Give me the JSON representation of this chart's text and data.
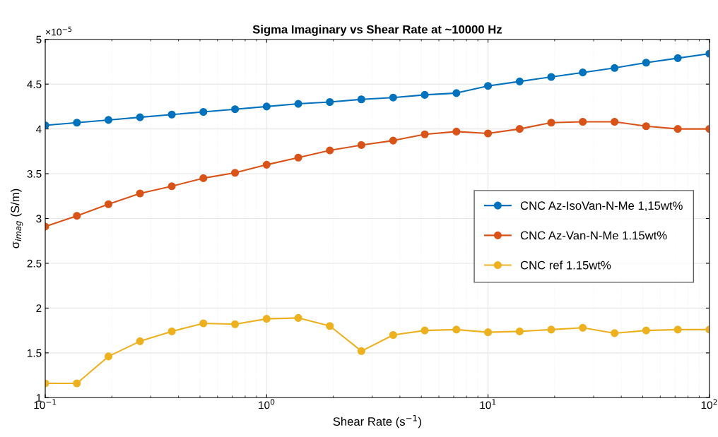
{
  "chart_data": {
    "type": "line",
    "title": "Sigma Imaginary vs Shear Rate at ~10000 Hz",
    "xlabel": "Shear Rate (s$^{−1}$)",
    "ylabel": "σ$_{imag}$ (S/m)",
    "x": [
      0.1,
      0.139,
      0.193,
      0.268,
      0.373,
      0.518,
      0.72,
      1.0,
      1.39,
      1.93,
      2.68,
      3.73,
      5.18,
      7.2,
      10,
      13.9,
      19.3,
      26.8,
      37.3,
      51.8,
      72,
      100
    ],
    "series": [
      {
        "name": "CNC Az-IsoVan-N-Me 1,15wt%",
        "color": "#0072bd",
        "values": [
          4.04,
          4.07,
          4.1,
          4.13,
          4.16,
          4.19,
          4.22,
          4.25,
          4.28,
          4.3,
          4.33,
          4.35,
          4.38,
          4.4,
          4.48,
          4.53,
          4.58,
          4.63,
          4.68,
          4.74,
          4.79,
          4.84
        ]
      },
      {
        "name": "CNC Az-Van-N-Me 1.15wt%",
        "color": "#d95319",
        "values": [
          2.91,
          3.03,
          3.16,
          3.28,
          3.36,
          3.45,
          3.51,
          3.6,
          3.68,
          3.76,
          3.82,
          3.87,
          3.94,
          3.97,
          3.95,
          4.0,
          4.07,
          4.08,
          4.08,
          4.03,
          4.0,
          4.0
        ]
      },
      {
        "name": "CNC ref 1.15wt%",
        "color": "#edb120",
        "values": [
          1.16,
          1.16,
          1.46,
          1.63,
          1.74,
          1.83,
          1.82,
          1.88,
          1.89,
          1.8,
          1.52,
          1.7,
          1.75,
          1.76,
          1.73,
          1.74,
          1.76,
          1.78,
          1.72,
          1.75,
          1.76,
          1.76
        ]
      }
    ],
    "log": "x",
    "xlim": [
      0.1,
      100
    ],
    "xticks": [
      {
        "value": 0.1,
        "label": "10$^{−1}$"
      },
      {
        "value": 1,
        "label": "10$^{0}$"
      },
      {
        "value": 10,
        "label": "10$^{1}$"
      },
      {
        "value": 100,
        "label": "10$^{2}$"
      }
    ],
    "ylim": [
      1,
      5
    ],
    "yticks": [
      1,
      1.5,
      2,
      2.5,
      3,
      3.5,
      4,
      4.5,
      5
    ],
    "annotations": [
      "×10$^{−5}$"
    ],
    "grid": true,
    "legend": "right",
    "marker": "circle",
    "line_style": "solid"
  }
}
